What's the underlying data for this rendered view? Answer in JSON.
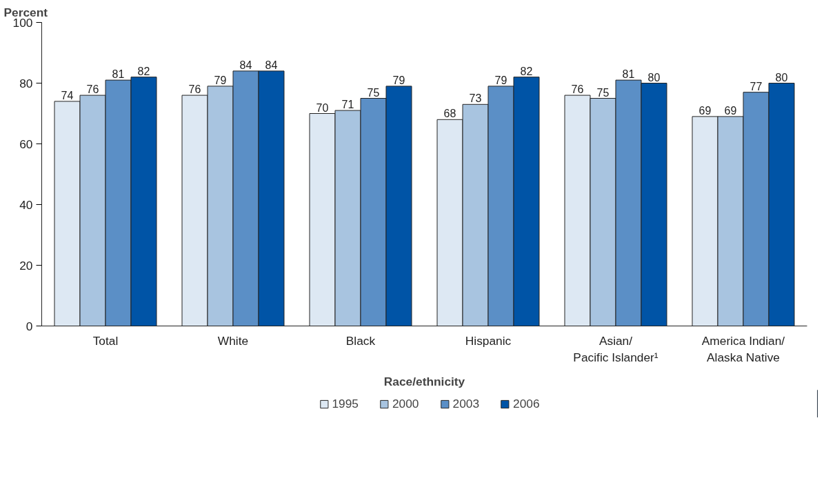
{
  "chart_data": {
    "type": "bar",
    "ylabel": "Percent",
    "xlabel": "Race/ethnicity",
    "categories": [
      "Total",
      "White",
      "Black",
      "Hispanic",
      "Asian/\nPacific Islander¹",
      "America Indian/\nAlaska Native"
    ],
    "series": [
      {
        "name": "1995",
        "color": "#dde8f3",
        "values": [
          74,
          76,
          70,
          68,
          76,
          69
        ]
      },
      {
        "name": "2000",
        "color": "#a8c4e0",
        "values": [
          76,
          79,
          71,
          73,
          75,
          69
        ]
      },
      {
        "name": "2003",
        "color": "#5b8fc6",
        "values": [
          81,
          84,
          75,
          79,
          81,
          77
        ]
      },
      {
        "name": "2006",
        "color": "#0054a6",
        "values": [
          82,
          84,
          79,
          82,
          80,
          80
        ]
      }
    ],
    "ylim": [
      0,
      100
    ],
    "yticks": [
      0,
      20,
      40,
      60,
      80,
      100
    ],
    "grid": false,
    "legend": "bottom",
    "data_labels": true
  }
}
